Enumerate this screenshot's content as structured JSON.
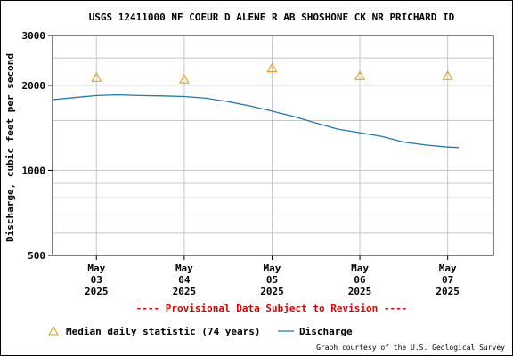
{
  "chart_data": {
    "type": "line",
    "title": "USGS 12411000 NF COEUR D ALENE R AB SHOSHONE CK NR PRICHARD ID",
    "ylabel": "Discharge, cubic feet per second",
    "xlabel": "",
    "y_scale": "log",
    "ylim": [
      500,
      3000
    ],
    "y_ticks": [
      {
        "value": 500,
        "label": "500"
      },
      {
        "value": 1000,
        "label": "1000"
      },
      {
        "value": 2000,
        "label": "2000"
      },
      {
        "value": 3000,
        "label": "3000"
      }
    ],
    "y_minor_grid": [
      600,
      700,
      800,
      900,
      1500,
      2500
    ],
    "xlim": [
      "2025-05-02 12:00",
      "2025-05-07 12:30"
    ],
    "x_ticks": [
      {
        "value": "2025-05-03",
        "lines": [
          "May",
          "03",
          "2025"
        ]
      },
      {
        "value": "2025-05-04",
        "lines": [
          "May",
          "04",
          "2025"
        ]
      },
      {
        "value": "2025-05-05",
        "lines": [
          "May",
          "05",
          "2025"
        ]
      },
      {
        "value": "2025-05-06",
        "lines": [
          "May",
          "06",
          "2025"
        ]
      },
      {
        "value": "2025-05-07",
        "lines": [
          "May",
          "07",
          "2025"
        ]
      }
    ],
    "grid": true,
    "series": [
      {
        "name": "Discharge",
        "kind": "line",
        "color": "#1f77b4",
        "points": [
          [
            "2025-05-02 12:00",
            1780
          ],
          [
            "2025-05-02 18:00",
            1810
          ],
          [
            "2025-05-03 00:00",
            1840
          ],
          [
            "2025-05-03 06:00",
            1850
          ],
          [
            "2025-05-03 12:00",
            1840
          ],
          [
            "2025-05-03 18:00",
            1835
          ],
          [
            "2025-05-04 00:00",
            1825
          ],
          [
            "2025-05-04 06:00",
            1800
          ],
          [
            "2025-05-04 12:00",
            1750
          ],
          [
            "2025-05-04 18:00",
            1690
          ],
          [
            "2025-05-05 00:00",
            1620
          ],
          [
            "2025-05-05 06:00",
            1550
          ],
          [
            "2025-05-05 12:00",
            1470
          ],
          [
            "2025-05-05 18:00",
            1400
          ],
          [
            "2025-05-06 00:00",
            1360
          ],
          [
            "2025-05-06 06:00",
            1320
          ],
          [
            "2025-05-06 12:00",
            1260
          ],
          [
            "2025-05-06 18:00",
            1230
          ],
          [
            "2025-05-07 00:00",
            1210
          ],
          [
            "2025-05-07 03:00",
            1205
          ]
        ]
      },
      {
        "name": "Median daily statistic (74 years)",
        "kind": "marker",
        "marker": "triangle",
        "color": "#e69500",
        "points": [
          [
            "2025-05-03",
            2130
          ],
          [
            "2025-05-04",
            2100
          ],
          [
            "2025-05-05",
            2300
          ],
          [
            "2025-05-06",
            2160
          ],
          [
            "2025-05-07",
            2160
          ]
        ]
      }
    ],
    "provisional_note": "---- Provisional Data Subject to Revision ----",
    "legend": [
      {
        "label": "Median daily statistic (74 years)",
        "symbol": "triangle",
        "color": "#e69500"
      },
      {
        "label": "Discharge",
        "symbol": "line",
        "color": "#1f77b4"
      }
    ],
    "legend_position": "bottom",
    "credit": "Graph courtesy of the U.S. Geological Survey"
  }
}
